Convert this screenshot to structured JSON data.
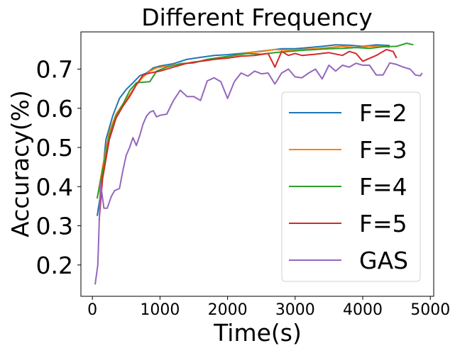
{
  "chart_data": {
    "type": "line",
    "title": "Different Frequency",
    "xlabel": "Time(s)",
    "ylabel": "Accuracy(%)",
    "xlim": [
      -170,
      5050
    ],
    "ylim": [
      0.12,
      0.795
    ],
    "xticks": [
      0,
      1000,
      2000,
      3000,
      4000,
      5000
    ],
    "xtick_labels": [
      "0",
      "1000",
      "2000",
      "3000",
      "4000",
      "5000"
    ],
    "yticks": [
      0.2,
      0.3,
      0.4,
      0.5,
      0.6,
      0.7
    ],
    "ytick_labels": [
      "0.2",
      "0.3",
      "0.4",
      "0.5",
      "0.6",
      "0.7"
    ],
    "grid": false,
    "legend_position": "right",
    "series": [
      {
        "name": "F=2",
        "color": "#1f77b4",
        "points": [
          [
            70,
            0.325
          ],
          [
            120,
            0.38
          ],
          [
            200,
            0.52
          ],
          [
            300,
            0.58
          ],
          [
            400,
            0.625
          ],
          [
            500,
            0.648
          ],
          [
            600,
            0.665
          ],
          [
            700,
            0.683
          ],
          [
            800,
            0.69
          ],
          [
            900,
            0.703
          ],
          [
            1000,
            0.708
          ],
          [
            1200,
            0.714
          ],
          [
            1400,
            0.725
          ],
          [
            1600,
            0.73
          ],
          [
            1800,
            0.735
          ],
          [
            2000,
            0.737
          ],
          [
            2200,
            0.74
          ],
          [
            2400,
            0.744
          ],
          [
            2600,
            0.748
          ],
          [
            2800,
            0.752
          ],
          [
            3000,
            0.752
          ],
          [
            3200,
            0.755
          ],
          [
            3400,
            0.758
          ],
          [
            3600,
            0.762
          ],
          [
            3800,
            0.761
          ],
          [
            4000,
            0.758
          ],
          [
            4200,
            0.762
          ],
          [
            4400,
            0.76
          ]
        ]
      },
      {
        "name": "F=3",
        "color": "#ff7f0e",
        "points": [
          [
            70,
            0.37
          ],
          [
            150,
            0.45
          ],
          [
            250,
            0.54
          ],
          [
            350,
            0.585
          ],
          [
            450,
            0.61
          ],
          [
            550,
            0.635
          ],
          [
            650,
            0.66
          ],
          [
            750,
            0.68
          ],
          [
            850,
            0.695
          ],
          [
            950,
            0.703
          ],
          [
            1100,
            0.708
          ],
          [
            1300,
            0.712
          ],
          [
            1500,
            0.718
          ],
          [
            1700,
            0.722
          ],
          [
            1900,
            0.728
          ],
          [
            2100,
            0.735
          ],
          [
            2300,
            0.742
          ],
          [
            2500,
            0.745
          ],
          [
            2700,
            0.75
          ],
          [
            2900,
            0.748
          ],
          [
            3100,
            0.75
          ],
          [
            3300,
            0.752
          ],
          [
            3500,
            0.755
          ],
          [
            3700,
            0.758
          ],
          [
            3900,
            0.755
          ],
          [
            4100,
            0.758
          ],
          [
            4300,
            0.758
          ],
          [
            4400,
            0.756
          ]
        ]
      },
      {
        "name": "F=4",
        "color": "#2ca02c",
        "points": [
          [
            70,
            0.37
          ],
          [
            150,
            0.44
          ],
          [
            250,
            0.53
          ],
          [
            350,
            0.58
          ],
          [
            450,
            0.61
          ],
          [
            550,
            0.645
          ],
          [
            650,
            0.665
          ],
          [
            850,
            0.668
          ],
          [
            950,
            0.695
          ],
          [
            1100,
            0.705
          ],
          [
            1300,
            0.714
          ],
          [
            1500,
            0.716
          ],
          [
            1700,
            0.725
          ],
          [
            1900,
            0.73
          ],
          [
            2100,
            0.735
          ],
          [
            2300,
            0.74
          ],
          [
            2500,
            0.738
          ],
          [
            2700,
            0.742
          ],
          [
            2900,
            0.745
          ],
          [
            3100,
            0.748
          ],
          [
            3300,
            0.75
          ],
          [
            3500,
            0.752
          ],
          [
            3700,
            0.753
          ],
          [
            3900,
            0.755
          ],
          [
            4100,
            0.753
          ],
          [
            4300,
            0.757
          ],
          [
            4500,
            0.758
          ],
          [
            4650,
            0.766
          ],
          [
            4750,
            0.762
          ]
        ]
      },
      {
        "name": "F=5",
        "color": "#d62728",
        "points": [
          [
            100,
            0.315
          ],
          [
            150,
            0.42
          ],
          [
            250,
            0.52
          ],
          [
            350,
            0.575
          ],
          [
            450,
            0.605
          ],
          [
            550,
            0.63
          ],
          [
            650,
            0.66
          ],
          [
            750,
            0.685
          ],
          [
            850,
            0.69
          ],
          [
            1000,
            0.695
          ],
          [
            1200,
            0.705
          ],
          [
            1400,
            0.715
          ],
          [
            1600,
            0.72
          ],
          [
            1800,
            0.725
          ],
          [
            2000,
            0.728
          ],
          [
            2200,
            0.733
          ],
          [
            2400,
            0.735
          ],
          [
            2600,
            0.74
          ],
          [
            2700,
            0.705
          ],
          [
            2800,
            0.745
          ],
          [
            2900,
            0.735
          ],
          [
            3000,
            0.74
          ],
          [
            3100,
            0.735
          ],
          [
            3300,
            0.738
          ],
          [
            3500,
            0.742
          ],
          [
            3700,
            0.735
          ],
          [
            3800,
            0.745
          ],
          [
            3900,
            0.74
          ],
          [
            4000,
            0.72
          ],
          [
            4200,
            0.735
          ],
          [
            4350,
            0.75
          ],
          [
            4450,
            0.745
          ],
          [
            4500,
            0.728
          ]
        ]
      },
      {
        "name": "GAS",
        "color": "#9467bd",
        "points": [
          [
            40,
            0.15
          ],
          [
            80,
            0.2
          ],
          [
            120,
            0.41
          ],
          [
            170,
            0.345
          ],
          [
            220,
            0.345
          ],
          [
            280,
            0.375
          ],
          [
            330,
            0.39
          ],
          [
            400,
            0.395
          ],
          [
            450,
            0.44
          ],
          [
            500,
            0.48
          ],
          [
            550,
            0.5
          ],
          [
            600,
            0.525
          ],
          [
            650,
            0.505
          ],
          [
            700,
            0.53
          ],
          [
            750,
            0.56
          ],
          [
            800,
            0.58
          ],
          [
            850,
            0.59
          ],
          [
            900,
            0.594
          ],
          [
            950,
            0.578
          ],
          [
            1000,
            0.582
          ],
          [
            1100,
            0.585
          ],
          [
            1200,
            0.62
          ],
          [
            1300,
            0.646
          ],
          [
            1400,
            0.63
          ],
          [
            1500,
            0.63
          ],
          [
            1600,
            0.62
          ],
          [
            1700,
            0.67
          ],
          [
            1800,
            0.678
          ],
          [
            1900,
            0.668
          ],
          [
            2000,
            0.625
          ],
          [
            2100,
            0.668
          ],
          [
            2200,
            0.69
          ],
          [
            2300,
            0.682
          ],
          [
            2400,
            0.695
          ],
          [
            2500,
            0.688
          ],
          [
            2600,
            0.69
          ],
          [
            2700,
            0.662
          ],
          [
            2800,
            0.69
          ],
          [
            2900,
            0.7
          ],
          [
            3000,
            0.68
          ],
          [
            3100,
            0.678
          ],
          [
            3200,
            0.69
          ],
          [
            3300,
            0.7
          ],
          [
            3400,
            0.675
          ],
          [
            3500,
            0.71
          ],
          [
            3600,
            0.695
          ],
          [
            3700,
            0.71
          ],
          [
            3800,
            0.705
          ],
          [
            3900,
            0.715
          ],
          [
            4000,
            0.71
          ],
          [
            4100,
            0.71
          ],
          [
            4200,
            0.685
          ],
          [
            4300,
            0.685
          ],
          [
            4400,
            0.716
          ],
          [
            4500,
            0.712
          ],
          [
            4600,
            0.705
          ],
          [
            4700,
            0.7
          ],
          [
            4780,
            0.685
          ],
          [
            4850,
            0.683
          ],
          [
            4880,
            0.69
          ]
        ]
      }
    ]
  }
}
